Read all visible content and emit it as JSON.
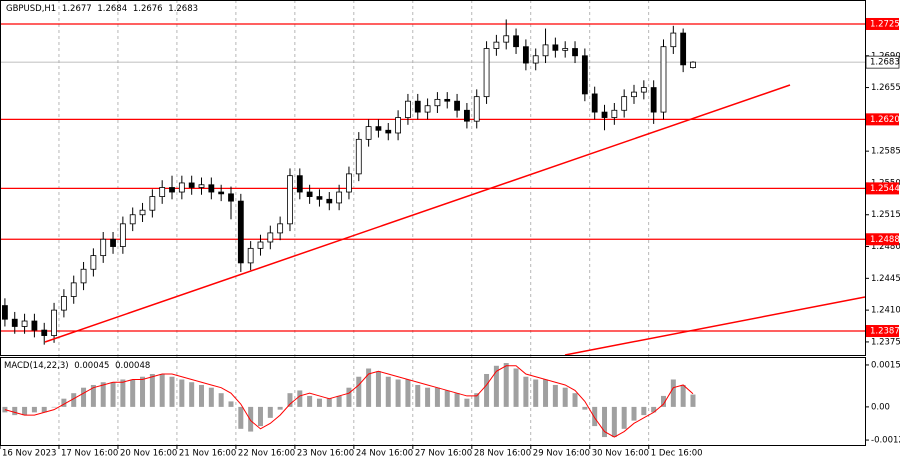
{
  "chart_data": [
    {
      "type": "candlestick",
      "title": "GBPUSD,H1",
      "open": [
        1.2415,
        1.24,
        1.2392,
        1.2398,
        1.2388,
        1.2382,
        1.241,
        1.2425,
        1.244,
        1.2455,
        1.247,
        1.2488,
        1.248,
        1.2505,
        1.2515,
        1.252,
        1.2535,
        1.2545,
        1.254,
        1.255,
        1.2545,
        1.2548,
        1.254,
        1.2538,
        1.253,
        1.2462,
        1.2478,
        1.2485,
        1.2495,
        1.2505,
        1.2558,
        1.254,
        1.2535,
        1.2532,
        1.2528,
        1.254,
        1.256,
        1.2598,
        1.2612,
        1.2608,
        1.2605,
        1.2622,
        1.264,
        1.2628,
        1.2635,
        1.2642,
        1.264,
        1.263,
        1.2618,
        1.2645,
        1.2698,
        1.2705,
        1.2712,
        1.27,
        1.2682,
        1.269,
        1.2702,
        1.2696,
        1.2698,
        1.269,
        1.2648,
        1.2628,
        1.2622,
        1.263,
        1.2645,
        1.265,
        1.2655,
        1.2628,
        1.27,
        1.2715,
        1.2677
      ],
      "high": [
        1.2423,
        1.2408,
        1.2406,
        1.2406,
        1.2396,
        1.2418,
        1.2433,
        1.2448,
        1.2463,
        1.2478,
        1.2496,
        1.2496,
        1.2513,
        1.2523,
        1.2528,
        1.2543,
        1.2553,
        1.2558,
        1.2558,
        1.2558,
        1.2556,
        1.2556,
        1.2548,
        1.2546,
        1.2538,
        1.2486,
        1.2493,
        1.2503,
        1.2513,
        1.2566,
        1.2566,
        1.2548,
        1.2543,
        1.254,
        1.2548,
        1.2568,
        1.2606,
        1.262,
        1.262,
        1.2616,
        1.263,
        1.2648,
        1.2648,
        1.2643,
        1.265,
        1.265,
        1.2648,
        1.2638,
        1.2653,
        1.2706,
        1.2713,
        1.273,
        1.272,
        1.2708,
        1.2698,
        1.272,
        1.271,
        1.2706,
        1.2706,
        1.2698,
        1.2656,
        1.2636,
        1.2638,
        1.2653,
        1.2658,
        1.2663,
        1.2663,
        1.2708,
        1.2723,
        1.272,
        1.2684
      ],
      "low": [
        1.2392,
        1.2384,
        1.2384,
        1.238,
        1.2372,
        1.2374,
        1.2402,
        1.2417,
        1.2432,
        1.2447,
        1.2462,
        1.2472,
        1.2472,
        1.2497,
        1.2507,
        1.2512,
        1.2527,
        1.2532,
        1.2532,
        1.2537,
        1.2537,
        1.2532,
        1.253,
        1.251,
        1.2452,
        1.2454,
        1.247,
        1.2477,
        1.2487,
        1.2497,
        1.2532,
        1.2527,
        1.2524,
        1.252,
        1.252,
        1.2532,
        1.2552,
        1.259,
        1.26,
        1.2597,
        1.2597,
        1.2614,
        1.262,
        1.262,
        1.2627,
        1.2632,
        1.2622,
        1.261,
        1.261,
        1.2637,
        1.269,
        1.2697,
        1.2692,
        1.2674,
        1.2674,
        1.2682,
        1.2688,
        1.2688,
        1.2682,
        1.264,
        1.262,
        1.2608,
        1.2614,
        1.2622,
        1.2637,
        1.2642,
        1.2615,
        1.262,
        1.2692,
        1.2672,
        1.2676
      ],
      "close": [
        1.24,
        1.2392,
        1.2398,
        1.2388,
        1.2382,
        1.241,
        1.2425,
        1.244,
        1.2455,
        1.247,
        1.2488,
        1.248,
        1.2505,
        1.2515,
        1.252,
        1.2535,
        1.2545,
        1.254,
        1.255,
        1.2545,
        1.2548,
        1.254,
        1.2538,
        1.253,
        1.2462,
        1.2478,
        1.2485,
        1.2495,
        1.2505,
        1.2558,
        1.254,
        1.2535,
        1.2532,
        1.2528,
        1.254,
        1.256,
        1.2598,
        1.2612,
        1.2608,
        1.2605,
        1.2622,
        1.264,
        1.2628,
        1.2635,
        1.2642,
        1.264,
        1.263,
        1.2618,
        1.2645,
        1.2698,
        1.2705,
        1.2712,
        1.27,
        1.2682,
        1.269,
        1.2702,
        1.2696,
        1.2698,
        1.269,
        1.2648,
        1.2628,
        1.2622,
        1.263,
        1.2645,
        1.265,
        1.2655,
        1.2628,
        1.27,
        1.2715,
        1.268,
        1.2683
      ],
      "xlim": [
        0,
        88
      ],
      "xticks": [
        {
          "value": 0,
          "label": "16 Nov 2023"
        },
        {
          "value": 6,
          "label": "17 Nov 16:00"
        },
        {
          "value": 12,
          "label": "20 Nov 16:00"
        },
        {
          "value": 18,
          "label": "21 Nov 16:00"
        },
        {
          "value": 24,
          "label": "22 Nov 16:00"
        },
        {
          "value": 30,
          "label": "23 Nov 16:00"
        },
        {
          "value": 36,
          "label": "24 Nov 16:00"
        },
        {
          "value": 42,
          "label": "27 Nov 16:00"
        },
        {
          "value": 48,
          "label": "28 Nov 16:00"
        },
        {
          "value": 54,
          "label": "29 Nov 16:00"
        },
        {
          "value": 60,
          "label": "30 Nov 16:00"
        },
        {
          "value": 66,
          "label": "1 Dec 16:00"
        }
      ],
      "ylim": [
        1.23606,
        1.27514
      ],
      "yticks": [
        {
          "value": 1.269,
          "label": "1.2690"
        },
        1.2655,
        1.2585,
        {
          "value": 1.255,
          "label": "1.2550"
        },
        1.2515,
        {
          "value": 1.248,
          "label": "1.2480"
        },
        1.2445,
        {
          "value": 1.241,
          "label": "1.2410"
        },
        1.2375
      ],
      "levels": [
        1.2725,
        {
          "value": 1.262,
          "label": "1.2620"
        },
        1.2544,
        1.2488,
        1.2387
      ],
      "level_color": "#ff0000",
      "up_color": "#ffffff",
      "down_color": "#000000"
    },
    {
      "type": "macd",
      "title": "MACD(14,22,3)",
      "histogram": [
        -0.0002,
        -0.0003,
        -0.0003,
        -0.0002,
        -0.0002,
        0,
        0.0003,
        0.0005,
        0.0007,
        0.0008,
        0.0009,
        0.0009,
        0.001,
        0.001,
        0.0011,
        0.0012,
        0.0012,
        0.0011,
        0.001,
        0.0009,
        0.0008,
        0.0007,
        0.0005,
        0.0002,
        -0.0008,
        -0.0009,
        -0.0007,
        -0.0004,
        -0.0001,
        0.0005,
        0.0006,
        0.0004,
        0.0003,
        0.0003,
        0.0004,
        0.0007,
        0.0011,
        0.0014,
        0.0013,
        0.0011,
        0.001,
        0.001,
        0.0008,
        0.0007,
        0.0007,
        0.0006,
        0.0005,
        0.0003,
        0.0005,
        0.0012,
        0.0015,
        0.0016,
        0.0014,
        0.0011,
        0.001,
        0.001,
        0.0008,
        0.0007,
        0.0005,
        -0.0001,
        -0.0007,
        -0.0011,
        -0.0011,
        -0.0008,
        -0.0005,
        -0.0003,
        -0.0002,
        0.0004,
        0.001,
        0.0008,
        0.00045
      ],
      "signal": [
        -0.0001,
        -0.0002,
        -0.0003,
        -0.0003,
        -0.0002,
        -0.0001,
        0.0001,
        0.0003,
        0.0005,
        0.0007,
        0.0008,
        0.0009,
        0.0009,
        0.001,
        0.001,
        0.0011,
        0.0012,
        0.0012,
        0.0011,
        0.001,
        0.0009,
        0.0008,
        0.0007,
        0.0005,
        0.0001,
        -0.0005,
        -0.0008,
        -0.0006,
        -0.0003,
        0.0001,
        0.0004,
        0.0005,
        0.0004,
        0.0003,
        0.0004,
        0.0005,
        0.0008,
        0.0012,
        0.0013,
        0.0012,
        0.0011,
        0.001,
        0.0009,
        0.0008,
        0.0007,
        0.0006,
        0.0005,
        0.0004,
        0.0004,
        0.0008,
        0.0013,
        0.0015,
        0.0015,
        0.0012,
        0.0011,
        0.001,
        0.0009,
        0.0008,
        0.0006,
        0.0002,
        -0.0004,
        -0.0009,
        -0.0011,
        -0.0009,
        -0.0006,
        -0.0004,
        -0.0002,
        0.0001,
        0.0007,
        0.0008,
        0.00048
      ],
      "histogram_color": "#a0a0a0",
      "signal_color": "#ff0000",
      "ylim": [
        -0.00139,
        0.00182
      ],
      "yticks": [
        0.00153,
        {
          "value": 0,
          "label": "0.00"
        },
        -0.00121
      ]
    }
  ]
}
